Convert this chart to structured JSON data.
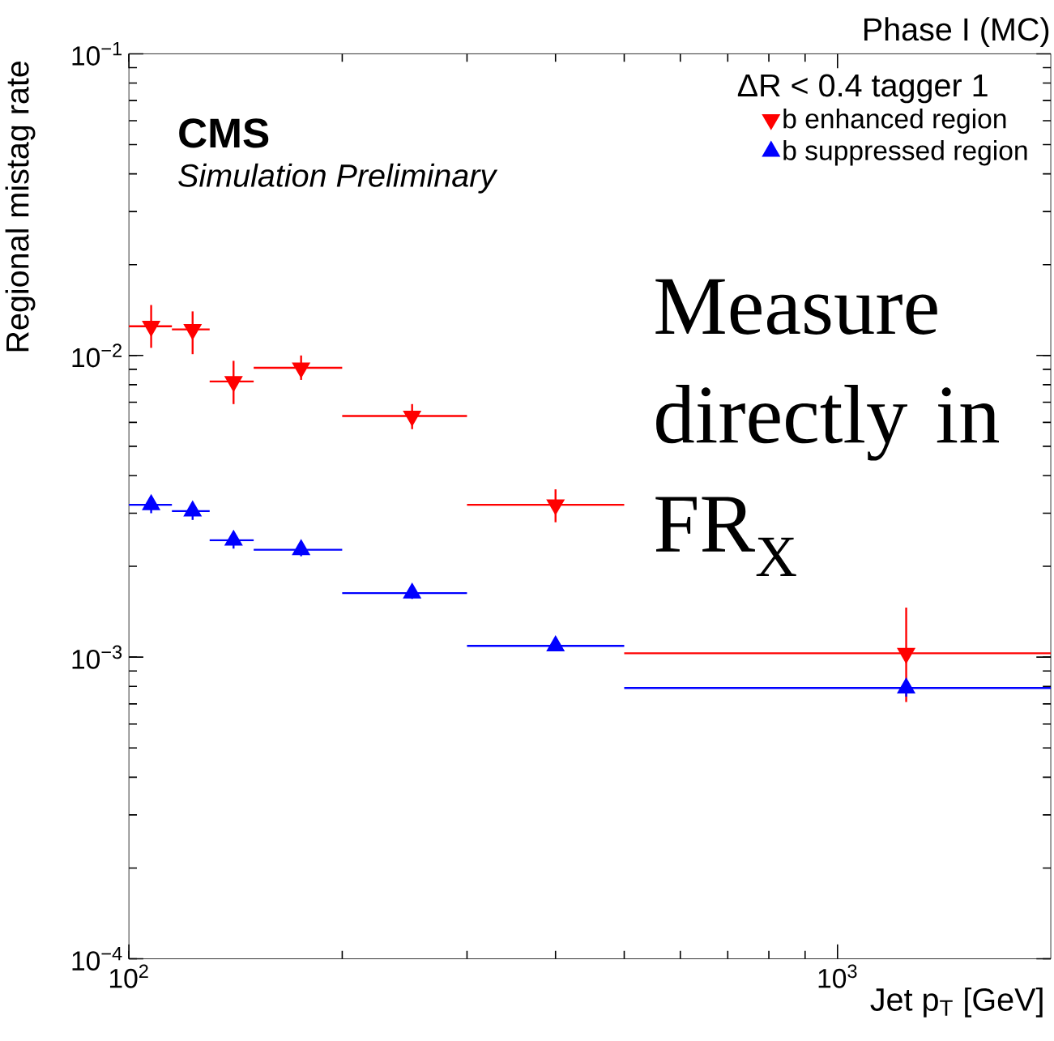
{
  "chart_data": {
    "type": "scatter",
    "xlabel": "Jet p$_{T}$ [GeV]",
    "ylabel": "Regional mistag rate",
    "legend_title": "ΔR < 0.4 tagger 1",
    "annotations": [
      "CMS",
      "Simulation Preliminary",
      "Phase I (MC)",
      "Measure directly in FR$_{X}$"
    ],
    "log": "xy",
    "legend": "top right",
    "xlim": [
      100,
      2000
    ],
    "ylim": [
      0.0001,
      0.1
    ],
    "xticks": [
      {
        "value": 100,
        "label": "10$^{2}$"
      },
      {
        "value": 1000,
        "label": "10$^{3}$"
      }
    ],
    "yticks": [
      {
        "value": 0.0001,
        "label": "10$^{−4}$"
      },
      {
        "value": 0.001,
        "label": "10$^{−3}$"
      },
      {
        "value": 0.01,
        "label": "10$^{−2}$"
      },
      {
        "value": 0.1,
        "label": "10$^{−1}$"
      }
    ],
    "x": [
      107.5,
      123,
      140.5,
      175,
      251,
      400,
      1250
    ],
    "series": [
      {
        "name": "b enhanced region",
        "color": "#ff0000",
        "marker": "triangle-down",
        "values": [
          0.0125,
          0.0122,
          0.0082,
          0.0091,
          0.0063,
          0.0032,
          0.00103
        ],
        "errors": [
          [
            0.0106,
            0.0147
          ],
          [
            0.0101,
            0.014
          ],
          [
            0.0069,
            0.0096
          ],
          [
            0.0083,
            0.01
          ],
          [
            0.0057,
            0.0069
          ],
          [
            0.0028,
            0.0036
          ],
          [
            0.00071,
            0.00146
          ]
        ],
        "xerrors": [
          [
            100,
            115
          ],
          [
            115,
            130
          ],
          [
            130,
            150
          ],
          [
            150,
            200
          ],
          [
            200,
            300
          ],
          [
            300,
            500
          ],
          [
            500,
            2000
          ]
        ]
      },
      {
        "name": "b suppressed region",
        "color": "#0000ff",
        "marker": "triangle",
        "values": [
          0.0032,
          0.00305,
          0.00244,
          0.00227,
          0.00163,
          0.00109,
          0.00079
        ],
        "errors": [
          [
            0.003,
            0.00336
          ],
          [
            0.00285,
            0.00326
          ],
          [
            0.00229,
            0.0026
          ],
          [
            0.00216,
            0.00236
          ],
          [
            0.00156,
            0.00169
          ],
          [
            0.00105,
            0.00114
          ],
          [
            0.00074,
            0.00084
          ]
        ],
        "xerrors": [
          [
            100,
            115
          ],
          [
            115,
            130
          ],
          [
            130,
            150
          ],
          [
            150,
            200
          ],
          [
            200,
            300
          ],
          [
            300,
            500
          ],
          [
            500,
            2000
          ]
        ]
      }
    ]
  }
}
